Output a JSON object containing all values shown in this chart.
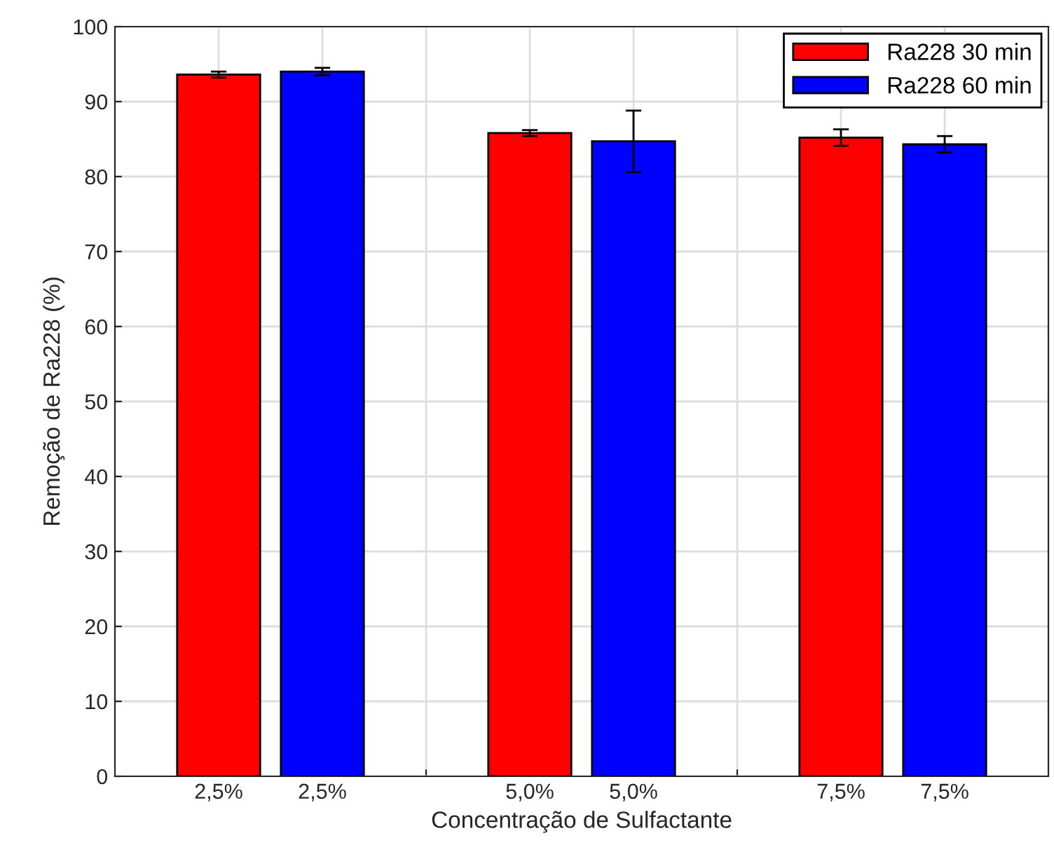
{
  "chart_data": {
    "type": "bar",
    "xlabel": "Concentração de Sulfactante",
    "ylabel": "Remoção de Ra228 (%)",
    "categories": [
      "2,5%",
      "2,5%",
      null,
      "5,0%",
      "5,0%",
      null,
      "7,5%",
      "7,5%"
    ],
    "series": [
      {
        "name": "Ra228 30 min",
        "color": "#ff0000",
        "values": [
          93.6,
          null,
          null,
          85.8,
          null,
          null,
          85.2,
          null
        ],
        "errors": [
          0.4,
          null,
          null,
          0.4,
          null,
          null,
          1.1,
          null
        ]
      },
      {
        "name": "Ra228 60 min",
        "color": "#0000ff",
        "values": [
          null,
          94.0,
          null,
          null,
          84.7,
          null,
          null,
          84.3
        ],
        "errors": [
          null,
          0.5,
          null,
          null,
          4.1,
          null,
          null,
          1.1
        ]
      }
    ],
    "ylim": [
      0,
      100
    ],
    "yticks": [
      0,
      10,
      20,
      30,
      40,
      50,
      60,
      70,
      80,
      90,
      100
    ],
    "grid": true,
    "legend": "top right"
  }
}
